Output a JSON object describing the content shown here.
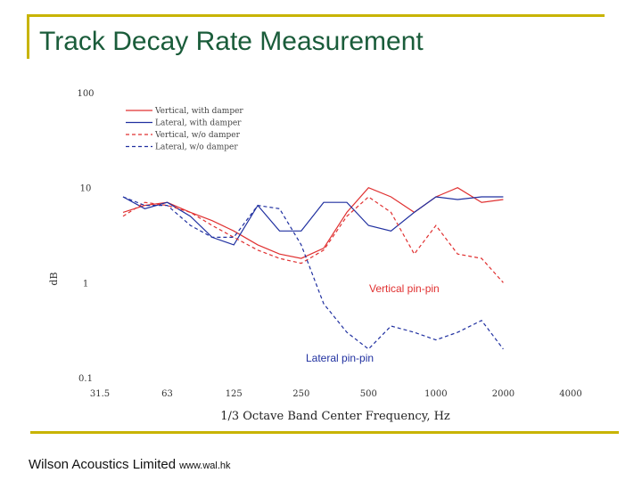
{
  "slide": {
    "title": "Track Decay Rate Measurement",
    "footer_company": "Wilson Acoustics Limited",
    "footer_url": "www.wal.hk"
  },
  "colors": {
    "frame": "#c8b400",
    "title": "#1a5c3a",
    "red": "#e03030",
    "blue": "#2030a0"
  },
  "chart_data": {
    "type": "line",
    "xlabel": "1/3 Octave Band Center Frequency, Hz",
    "ylabel": "dB",
    "yscale": "log",
    "ylim": [
      0.1,
      100
    ],
    "yticks": [
      "100",
      "10",
      "1",
      "0.1"
    ],
    "xticks": [
      "31.5",
      "63",
      "125",
      "250",
      "500",
      "1000",
      "2000",
      "4000"
    ],
    "x": [
      40,
      50,
      63,
      80,
      100,
      125,
      160,
      200,
      250,
      315,
      400,
      500,
      630,
      800,
      1000,
      1250,
      1600,
      2000
    ],
    "series": [
      {
        "name": "Vertical, with damper",
        "color": "#e03030",
        "dash": "solid",
        "values": [
          5.5,
          6.5,
          7,
          5.5,
          4.5,
          3.5,
          2.5,
          2,
          1.8,
          2.3,
          5.5,
          10,
          8,
          5.5,
          8,
          10,
          7,
          7.5
        ]
      },
      {
        "name": "Lateral, with damper",
        "color": "#2030a0",
        "dash": "solid",
        "values": [
          8,
          6,
          7,
          5,
          3,
          2.5,
          6.5,
          3.5,
          3.5,
          7,
          7,
          4,
          3.5,
          5.5,
          8,
          7.5,
          8,
          8
        ]
      },
      {
        "name": "Vertical, w/o damper",
        "color": "#e03030",
        "dash": "dashed",
        "values": [
          5,
          7,
          6.5,
          5.5,
          4,
          3,
          2.2,
          1.8,
          1.6,
          2.2,
          5,
          8,
          5.5,
          2,
          4,
          2,
          1.8,
          1
        ]
      },
      {
        "name": "Lateral, w/o damper",
        "color": "#2030a0",
        "dash": "dashed",
        "values": [
          8,
          6.5,
          6.5,
          4,
          3,
          3,
          6.5,
          6,
          2.5,
          0.6,
          0.3,
          0.2,
          0.35,
          0.3,
          0.25,
          0.3,
          0.4,
          0.2
        ]
      }
    ],
    "legend_position": "top-left",
    "annotations": [
      {
        "text": "Vertical pin-pin",
        "color": "#e03030"
      },
      {
        "text": "Lateral pin-pin",
        "color": "#2030a0"
      }
    ]
  }
}
